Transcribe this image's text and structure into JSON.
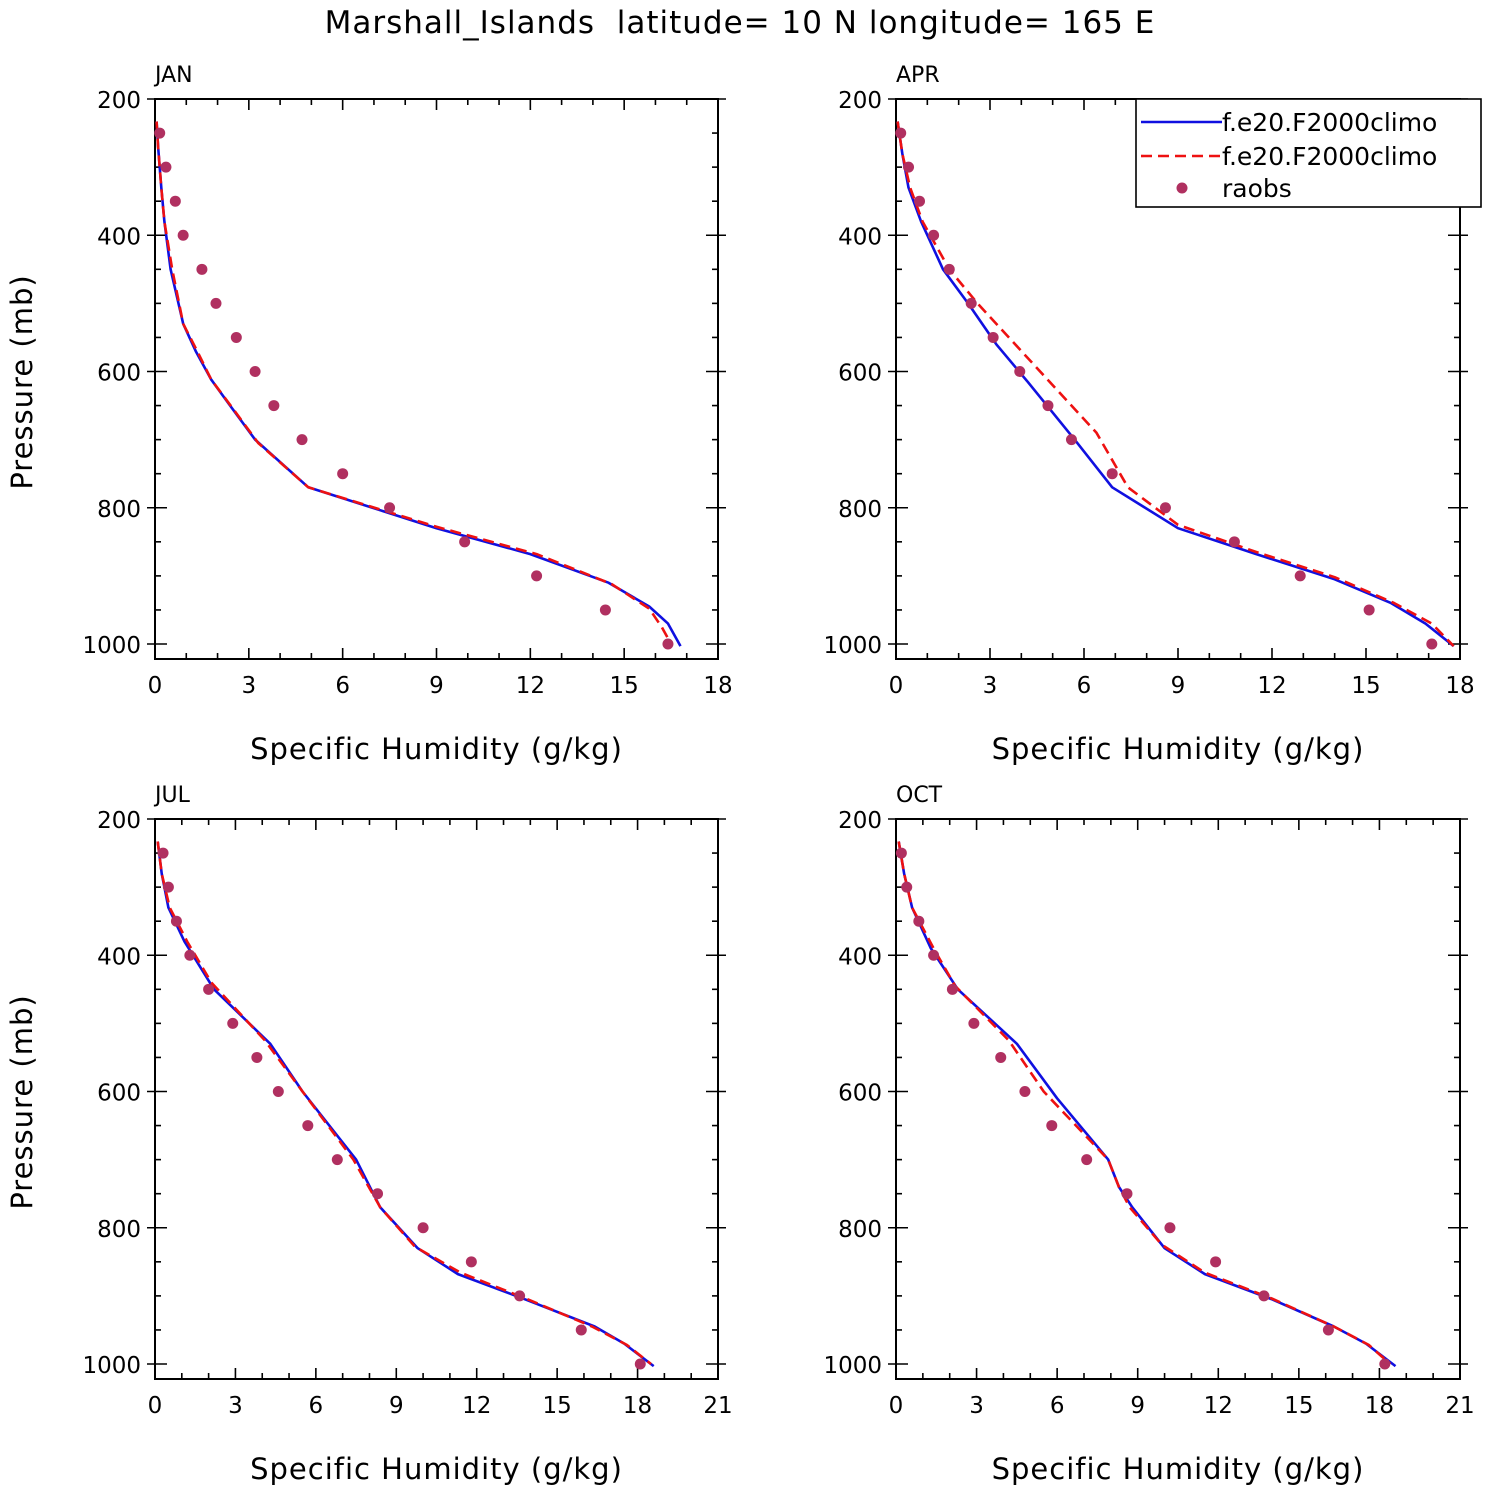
{
  "title": "Marshall_Islands  latitude= 10 N longitude= 165 E",
  "colors": {
    "model1": "#1010e0",
    "model2": "#ee1111",
    "obs": "#b03060"
  },
  "legend": [
    {
      "label": "f.e20.F2000climo",
      "style": "solid"
    },
    {
      "label": "f.e20.F2000climo",
      "style": "dashed"
    },
    {
      "label": "raobs",
      "style": "dots"
    }
  ],
  "chart_data": [
    {
      "type": "line",
      "panel": "JAN",
      "xlabel": "Specific Humidity (g/kg)",
      "ylabel": "Pressure (mb)",
      "xlim": [
        0,
        18
      ],
      "ylim": [
        200,
        1000
      ],
      "xticks": [
        0,
        3,
        6,
        9,
        12,
        15,
        18
      ],
      "yticks": [
        200,
        400,
        600,
        800,
        1000
      ],
      "series": [
        {
          "name": "f.e20.F2000climo",
          "style": "solid",
          "points": [
            [
              0.05,
              233
            ],
            [
              0.1,
              270
            ],
            [
              0.2,
              330
            ],
            [
              0.3,
              380
            ],
            [
              0.5,
              450
            ],
            [
              0.9,
              530
            ],
            [
              1.3,
              570
            ],
            [
              1.8,
              612
            ],
            [
              2.4,
              650
            ],
            [
              3.2,
              700
            ],
            [
              4.9,
              770
            ],
            [
              9.0,
              830
            ],
            [
              12.0,
              868
            ],
            [
              14.5,
              910
            ],
            [
              15.8,
              945
            ],
            [
              16.4,
              970
            ],
            [
              16.8,
              1003
            ]
          ]
        },
        {
          "name": "f.e20.F2000climo",
          "style": "dashed",
          "points": [
            [
              0.05,
              233
            ],
            [
              0.1,
              270
            ],
            [
              0.2,
              330
            ],
            [
              0.3,
              380
            ],
            [
              0.55,
              450
            ],
            [
              0.9,
              530
            ],
            [
              1.35,
              570
            ],
            [
              1.8,
              612
            ],
            [
              2.5,
              655
            ],
            [
              3.3,
              705
            ],
            [
              4.9,
              770
            ],
            [
              9.0,
              828
            ],
            [
              12.2,
              868
            ],
            [
              14.6,
              912
            ],
            [
              15.8,
              948
            ],
            [
              16.2,
              975
            ],
            [
              16.5,
              1000
            ]
          ]
        },
        {
          "name": "raobs",
          "style": "dots",
          "points": [
            [
              0.15,
              250
            ],
            [
              0.35,
              300
            ],
            [
              0.65,
              350
            ],
            [
              0.9,
              400
            ],
            [
              1.5,
              450
            ],
            [
              1.95,
              500
            ],
            [
              2.6,
              550
            ],
            [
              3.2,
              600
            ],
            [
              3.8,
              650
            ],
            [
              4.7,
              700
            ],
            [
              6.0,
              750
            ],
            [
              7.5,
              800
            ],
            [
              9.9,
              850
            ],
            [
              12.2,
              900
            ],
            [
              14.4,
              950
            ],
            [
              16.4,
              1000
            ]
          ]
        }
      ]
    },
    {
      "type": "line",
      "panel": "APR",
      "xlabel": "Specific Humidity (g/kg)",
      "ylabel": "",
      "xlim": [
        0,
        18
      ],
      "ylim": [
        200,
        1000
      ],
      "xticks": [
        0,
        3,
        6,
        9,
        12,
        15,
        18
      ],
      "yticks": [
        200,
        400,
        600,
        800,
        1000
      ],
      "series": [
        {
          "name": "f.e20.F2000climo",
          "style": "solid",
          "points": [
            [
              0.05,
              233
            ],
            [
              0.2,
              280
            ],
            [
              0.4,
              330
            ],
            [
              0.8,
              380
            ],
            [
              1.5,
              450
            ],
            [
              2.3,
              500
            ],
            [
              3.2,
              560
            ],
            [
              4.2,
              615
            ],
            [
              5.7,
              700
            ],
            [
              6.9,
              770
            ],
            [
              9.0,
              830
            ],
            [
              11.5,
              868
            ],
            [
              14.0,
              905
            ],
            [
              15.8,
              940
            ],
            [
              16.9,
              970
            ],
            [
              17.8,
              1003
            ]
          ]
        },
        {
          "name": "f.e20.F2000climo",
          "style": "dashed",
          "points": [
            [
              0.05,
              233
            ],
            [
              0.2,
              280
            ],
            [
              0.45,
              330
            ],
            [
              0.85,
              380
            ],
            [
              1.7,
              450
            ],
            [
              2.6,
              500
            ],
            [
              3.6,
              550
            ],
            [
              4.8,
              610
            ],
            [
              6.4,
              690
            ],
            [
              7.4,
              770
            ],
            [
              9.0,
              825
            ],
            [
              11.5,
              865
            ],
            [
              14.0,
              902
            ],
            [
              15.9,
              940
            ],
            [
              17.1,
              970
            ],
            [
              17.8,
              1003
            ]
          ]
        },
        {
          "name": "raobs",
          "style": "dots",
          "points": [
            [
              0.15,
              250
            ],
            [
              0.4,
              300
            ],
            [
              0.75,
              350
            ],
            [
              1.2,
              400
            ],
            [
              1.7,
              450
            ],
            [
              2.4,
              500
            ],
            [
              3.1,
              550
            ],
            [
              3.95,
              600
            ],
            [
              4.85,
              650
            ],
            [
              5.6,
              700
            ],
            [
              6.9,
              750
            ],
            [
              8.6,
              800
            ],
            [
              10.8,
              850
            ],
            [
              12.9,
              900
            ],
            [
              15.1,
              950
            ],
            [
              17.1,
              1000
            ]
          ]
        }
      ]
    },
    {
      "type": "line",
      "panel": "JUL",
      "xlabel": "Specific Humidity (g/kg)",
      "ylabel": "Pressure (mb)",
      "xlim": [
        0,
        21
      ],
      "ylim": [
        200,
        1000
      ],
      "xticks": [
        0,
        3,
        6,
        9,
        12,
        15,
        18,
        21
      ],
      "yticks": [
        200,
        400,
        600,
        800,
        1000
      ],
      "series": [
        {
          "name": "f.e20.F2000climo",
          "style": "solid",
          "points": [
            [
              0.1,
              233
            ],
            [
              0.25,
              280
            ],
            [
              0.5,
              330
            ],
            [
              1.1,
              380
            ],
            [
              2.2,
              450
            ],
            [
              4.3,
              530
            ],
            [
              5.5,
              600
            ],
            [
              7.5,
              700
            ],
            [
              8.4,
              770
            ],
            [
              9.8,
              830
            ],
            [
              11.3,
              868
            ],
            [
              13.8,
              905
            ],
            [
              16.4,
              945
            ],
            [
              17.5,
              970
            ],
            [
              18.6,
              1003
            ]
          ]
        },
        {
          "name": "f.e20.F2000climo",
          "style": "dashed",
          "points": [
            [
              0.1,
              233
            ],
            [
              0.25,
              280
            ],
            [
              0.55,
              330
            ],
            [
              1.2,
              380
            ],
            [
              2.1,
              440
            ],
            [
              4.1,
              525
            ],
            [
              5.5,
              600
            ],
            [
              7.4,
              700
            ],
            [
              8.4,
              770
            ],
            [
              9.7,
              828
            ],
            [
              11.4,
              866
            ],
            [
              13.9,
              905
            ],
            [
              16.3,
              945
            ],
            [
              17.6,
              972
            ],
            [
              18.5,
              1000
            ]
          ]
        },
        {
          "name": "raobs",
          "style": "dots",
          "points": [
            [
              0.3,
              250
            ],
            [
              0.5,
              300
            ],
            [
              0.8,
              350
            ],
            [
              1.3,
              400
            ],
            [
              2.0,
              450
            ],
            [
              2.9,
              500
            ],
            [
              3.8,
              550
            ],
            [
              4.6,
              600
            ],
            [
              5.7,
              650
            ],
            [
              6.8,
              700
            ],
            [
              8.3,
              750
            ],
            [
              10.0,
              800
            ],
            [
              11.8,
              850
            ],
            [
              13.6,
              900
            ],
            [
              15.9,
              950
            ],
            [
              18.1,
              1000
            ]
          ]
        }
      ]
    },
    {
      "type": "line",
      "panel": "OCT",
      "xlabel": "Specific Humidity (g/kg)",
      "ylabel": "",
      "xlim": [
        0,
        21
      ],
      "ylim": [
        200,
        1000
      ],
      "xticks": [
        0,
        3,
        6,
        9,
        12,
        15,
        18,
        21
      ],
      "yticks": [
        200,
        400,
        600,
        800,
        1000
      ],
      "series": [
        {
          "name": "f.e20.F2000climo",
          "style": "solid",
          "points": [
            [
              0.1,
              233
            ],
            [
              0.3,
              280
            ],
            [
              0.6,
              330
            ],
            [
              1.3,
              390
            ],
            [
              2.3,
              450
            ],
            [
              4.5,
              530
            ],
            [
              6.0,
              610
            ],
            [
              7.9,
              700
            ],
            [
              8.3,
              740
            ],
            [
              8.8,
              770
            ],
            [
              10.0,
              830
            ],
            [
              11.5,
              868
            ],
            [
              14.0,
              905
            ],
            [
              16.3,
              945
            ],
            [
              17.5,
              970
            ],
            [
              18.6,
              1003
            ]
          ]
        },
        {
          "name": "f.e20.F2000climo",
          "style": "dashed",
          "points": [
            [
              0.1,
              233
            ],
            [
              0.3,
              280
            ],
            [
              0.6,
              330
            ],
            [
              1.4,
              390
            ],
            [
              2.2,
              445
            ],
            [
              4.2,
              525
            ],
            [
              5.5,
              600
            ],
            [
              7.9,
              700
            ],
            [
              8.3,
              740
            ],
            [
              8.7,
              770
            ],
            [
              9.9,
              825
            ],
            [
              11.5,
              866
            ],
            [
              14.0,
              904
            ],
            [
              16.3,
              945
            ],
            [
              17.6,
              972
            ],
            [
              18.4,
              1000
            ]
          ]
        },
        {
          "name": "raobs",
          "style": "dots",
          "points": [
            [
              0.2,
              250
            ],
            [
              0.4,
              300
            ],
            [
              0.85,
              350
            ],
            [
              1.4,
              400
            ],
            [
              2.1,
              450
            ],
            [
              2.9,
              500
            ],
            [
              3.9,
              550
            ],
            [
              4.8,
              600
            ],
            [
              5.8,
              650
            ],
            [
              7.1,
              700
            ],
            [
              8.6,
              750
            ],
            [
              10.2,
              800
            ],
            [
              11.9,
              850
            ],
            [
              13.7,
              900
            ],
            [
              16.1,
              950
            ],
            [
              18.2,
              1000
            ]
          ]
        }
      ]
    }
  ]
}
